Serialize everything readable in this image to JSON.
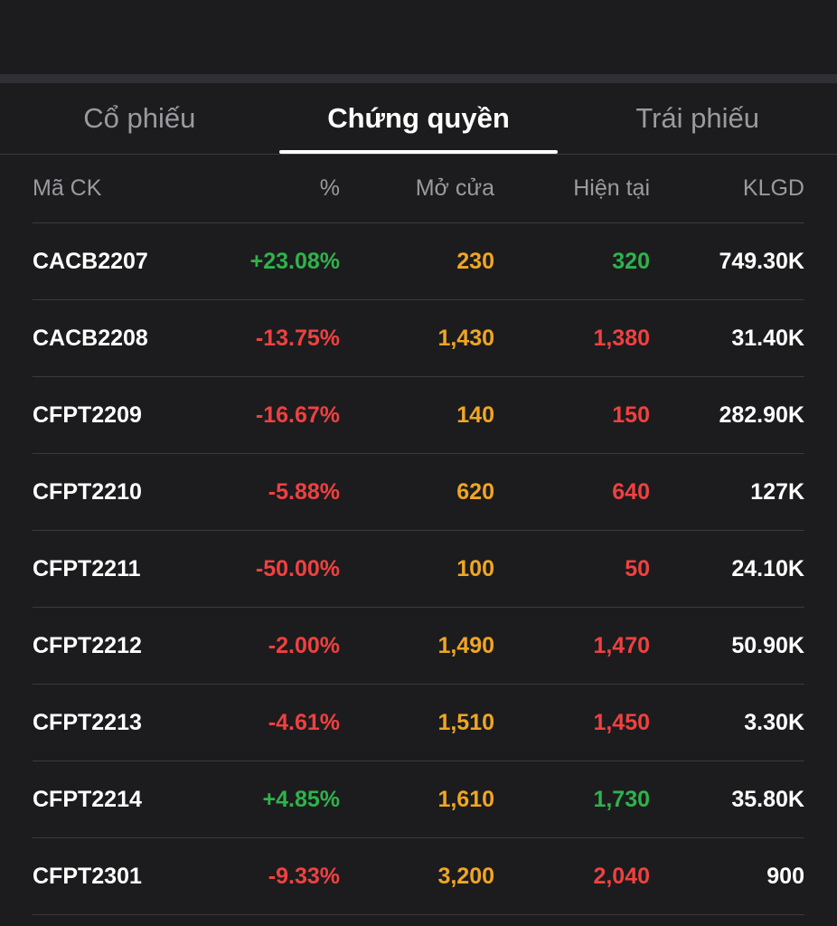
{
  "tabs": [
    {
      "label": "Cổ phiếu",
      "active": false
    },
    {
      "label": "Chứng quyền",
      "active": true
    },
    {
      "label": "Trái phiếu",
      "active": false
    }
  ],
  "table": {
    "headers": {
      "code": "Mã CK",
      "percent": "%",
      "open": "Mở cửa",
      "current": "Hiện tại",
      "volume": "KLGD"
    },
    "colors": {
      "up": "#2fb24c",
      "down": "#ef4140",
      "open": "#f0a623"
    },
    "rows": [
      {
        "code": "CACB2207",
        "percent": "+23.08%",
        "open": "230",
        "current": "320",
        "volume": "749.30K",
        "direction": "up"
      },
      {
        "code": "CACB2208",
        "percent": "-13.75%",
        "open": "1,430",
        "current": "1,380",
        "volume": "31.40K",
        "direction": "down"
      },
      {
        "code": "CFPT2209",
        "percent": "-16.67%",
        "open": "140",
        "current": "150",
        "volume": "282.90K",
        "direction": "down"
      },
      {
        "code": "CFPT2210",
        "percent": "-5.88%",
        "open": "620",
        "current": "640",
        "volume": "127K",
        "direction": "down"
      },
      {
        "code": "CFPT2211",
        "percent": "-50.00%",
        "open": "100",
        "current": "50",
        "volume": "24.10K",
        "direction": "down"
      },
      {
        "code": "CFPT2212",
        "percent": "-2.00%",
        "open": "1,490",
        "current": "1,470",
        "volume": "50.90K",
        "direction": "down"
      },
      {
        "code": "CFPT2213",
        "percent": "-4.61%",
        "open": "1,510",
        "current": "1,450",
        "volume": "3.30K",
        "direction": "down"
      },
      {
        "code": "CFPT2214",
        "percent": "+4.85%",
        "open": "1,610",
        "current": "1,730",
        "volume": "35.80K",
        "direction": "up"
      },
      {
        "code": "CFPT2301",
        "percent": "-9.33%",
        "open": "3,200",
        "current": "2,040",
        "volume": "900",
        "direction": "down"
      }
    ]
  }
}
